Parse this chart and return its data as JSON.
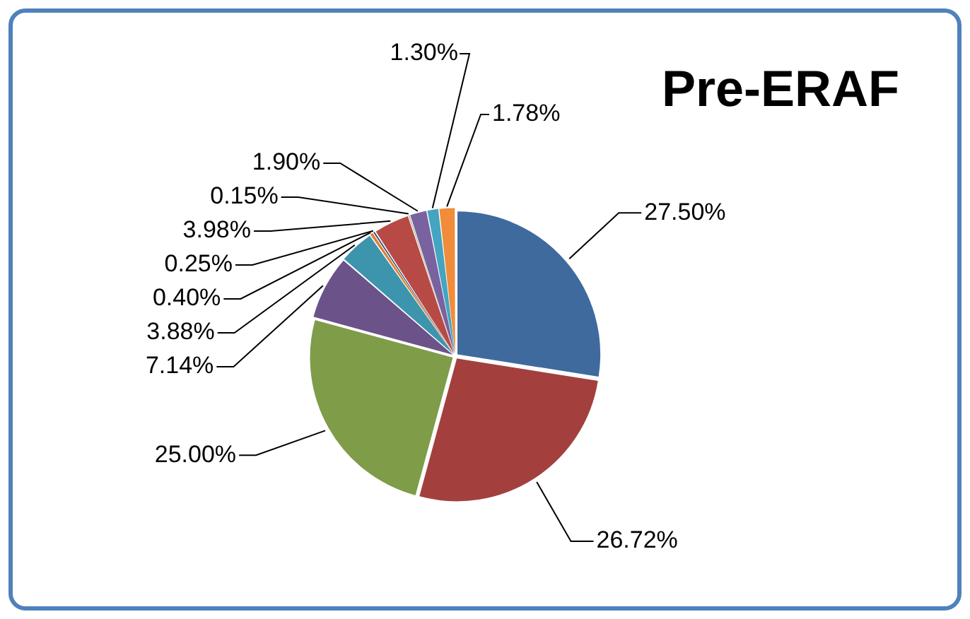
{
  "chart_data": {
    "type": "pie",
    "title": "Pre-ERAF",
    "categories": [
      null,
      null,
      null,
      null,
      null,
      null,
      null,
      null,
      null,
      null,
      null,
      null
    ],
    "values": [
      27.5,
      26.72,
      25.0,
      7.14,
      3.88,
      0.4,
      0.25,
      3.98,
      0.15,
      1.9,
      1.3,
      1.78
    ],
    "value_labels": [
      "27.50%",
      "26.72%",
      "25.00%",
      "7.14%",
      "3.88%",
      "0.40%",
      "0.25%",
      "3.98%",
      "0.15%",
      "1.90%",
      "1.30%",
      "1.78%"
    ],
    "colors": [
      "#3f6a9e",
      "#a3403d",
      "#7f9c48",
      "#6b5289",
      "#3d94ad",
      "#e07f34",
      "#2c4d75",
      "#b84a46",
      "#5f7530",
      "#7a62a0",
      "#45a4bf",
      "#f08c3a"
    ],
    "legend": false
  }
}
